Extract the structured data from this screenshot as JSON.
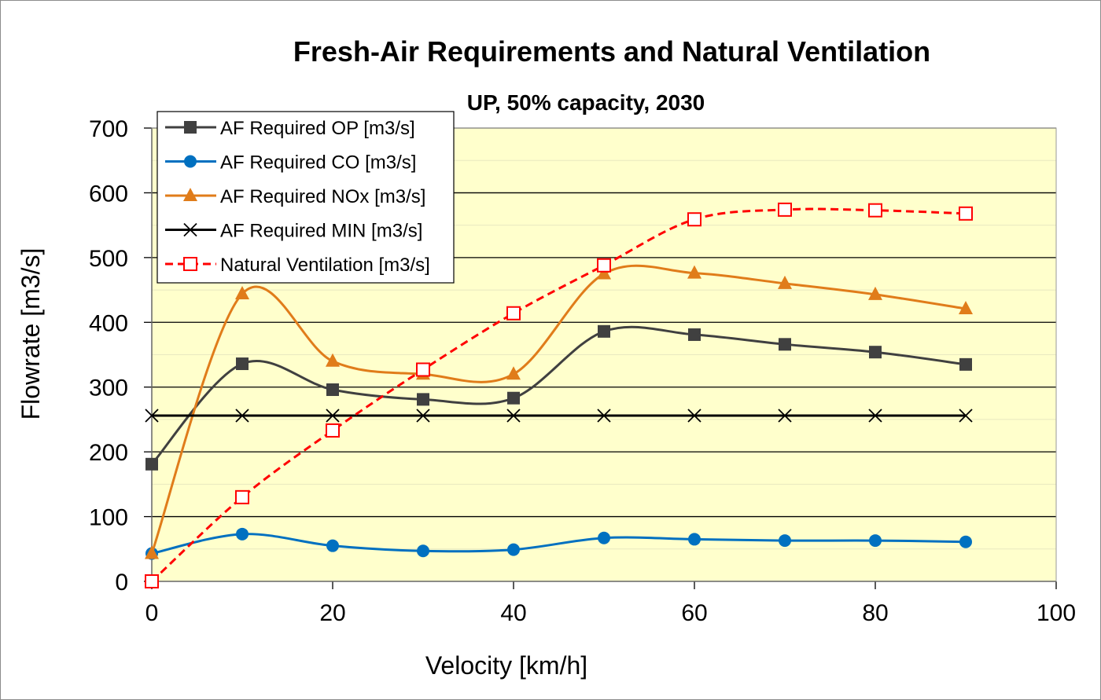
{
  "chart_data": {
    "type": "line",
    "title": "Fresh-Air Requirements and Natural Ventilation",
    "subtitle": "UP, 50% capacity, 2030",
    "xlabel": "Velocity [km/h]",
    "ylabel": "Flowrate [m3/s]",
    "xlim": [
      0,
      100
    ],
    "ylim": [
      0,
      700
    ],
    "xticks": [
      "0",
      "20",
      "40",
      "60",
      "80",
      "100"
    ],
    "yticks": [
      "0",
      "100",
      "200",
      "300",
      "400",
      "500",
      "600",
      "700"
    ],
    "grid": "horizontal",
    "legend_position": "top-left",
    "plot_background": "#ffffcc",
    "series": [
      {
        "name": "AF Required OP [m3/s]",
        "color": "#404040",
        "marker": "square",
        "dash": "solid",
        "x": [
          0,
          10,
          20,
          30,
          40,
          50,
          60,
          70,
          80,
          90
        ],
        "y": [
          181,
          336,
          296,
          281,
          283,
          386,
          381,
          366,
          354,
          335
        ]
      },
      {
        "name": "AF Required CO [m3/s]",
        "color": "#0070c0",
        "marker": "circle",
        "dash": "solid",
        "x": [
          0,
          10,
          20,
          30,
          40,
          50,
          60,
          70,
          80,
          90
        ],
        "y": [
          43,
          73,
          55,
          47,
          49,
          67,
          65,
          63,
          63,
          61
        ]
      },
      {
        "name": "AF Required NOx [m3/s]",
        "color": "#e07c1a",
        "marker": "triangle",
        "dash": "solid",
        "x": [
          0,
          10,
          20,
          30,
          40,
          50,
          60,
          70,
          80,
          90
        ],
        "y": [
          43,
          444,
          340,
          320,
          320,
          475,
          476,
          460,
          443,
          421
        ]
      },
      {
        "name": "AF Required MIN [m3/s]",
        "color": "#000000",
        "marker": "x",
        "dash": "solid",
        "x": [
          0,
          10,
          20,
          30,
          40,
          50,
          60,
          70,
          80,
          90
        ],
        "y": [
          256,
          256,
          256,
          256,
          256,
          256,
          256,
          256,
          256,
          256
        ]
      },
      {
        "name": "Natural Ventilation [m3/s]",
        "color": "#ff0000",
        "marker": "open-square",
        "dash": "dashed",
        "x": [
          0,
          10,
          20,
          30,
          40,
          50,
          60,
          70,
          80,
          90
        ],
        "y": [
          0,
          130,
          233,
          327,
          414,
          488,
          559,
          574,
          573,
          568
        ]
      }
    ]
  }
}
